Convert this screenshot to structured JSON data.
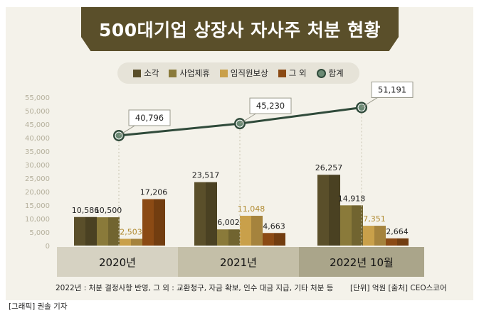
{
  "title": "500대기업 상장사 자사주 처분 현황",
  "legend": {
    "items": [
      {
        "name": "소각",
        "color": "#5a4f2a"
      },
      {
        "name": "사업제휴",
        "color": "#8a7a3a"
      },
      {
        "name": "임직원보상",
        "color": "#c9a04a"
      },
      {
        "name": "그 외",
        "color": "#8b4a14"
      },
      {
        "name": "합계",
        "color": "#2f4a3a"
      }
    ]
  },
  "chart_data": {
    "type": "bar",
    "categories": [
      "2020년",
      "2021년",
      "2022년 10월"
    ],
    "series": [
      {
        "name": "소각",
        "values": [
          10586,
          23517,
          26257
        ],
        "color": "#5a4f2a",
        "label_color": "#222222"
      },
      {
        "name": "사업제휴",
        "values": [
          10500,
          6002,
          14918
        ],
        "color": "#8a7a3a",
        "label_color": "#222222"
      },
      {
        "name": "임직원보상",
        "values": [
          2503,
          11048,
          7351
        ],
        "color": "#c9a04a",
        "label_color": "#b08a30"
      },
      {
        "name": "그 외",
        "values": [
          17206,
          4663,
          2664
        ],
        "color": "#8b4a14",
        "label_color": "#222222"
      }
    ],
    "line_series": {
      "name": "합계",
      "values": [
        40796,
        45230,
        51191
      ],
      "color": "#2f4a3a"
    },
    "value_labels": {
      "bars": [
        [
          "10,586",
          "10,500",
          "2,503",
          "17,206"
        ],
        [
          "23,517",
          "6,002",
          "11,048",
          "4,663"
        ],
        [
          "26,257",
          "14,918",
          "7,351",
          "2,664"
        ]
      ],
      "totals": [
        "40,796",
        "45,230",
        "51,191"
      ]
    },
    "ylim": [
      0,
      55000
    ],
    "yticks": [
      "0",
      "5,000",
      "10,000",
      "15,000",
      "20,000",
      "25,000",
      "30,000",
      "35,000",
      "40,000",
      "45,000",
      "50,000",
      "55,000"
    ],
    "grid": false,
    "legend_position": "top-center"
  },
  "year_band_colors": [
    "#d6d2c2",
    "#c4bfa8",
    "#aaa58a"
  ],
  "footnote": "2022년 : 처분 결정사항 반영, 그 외 : 교환청구, 자금 확보, 인수 대금 지급, 기타 처분 등",
  "source": "[단위] 억원   [출처] CEO스코어",
  "credit": "[그래픽] 권솔 기자"
}
